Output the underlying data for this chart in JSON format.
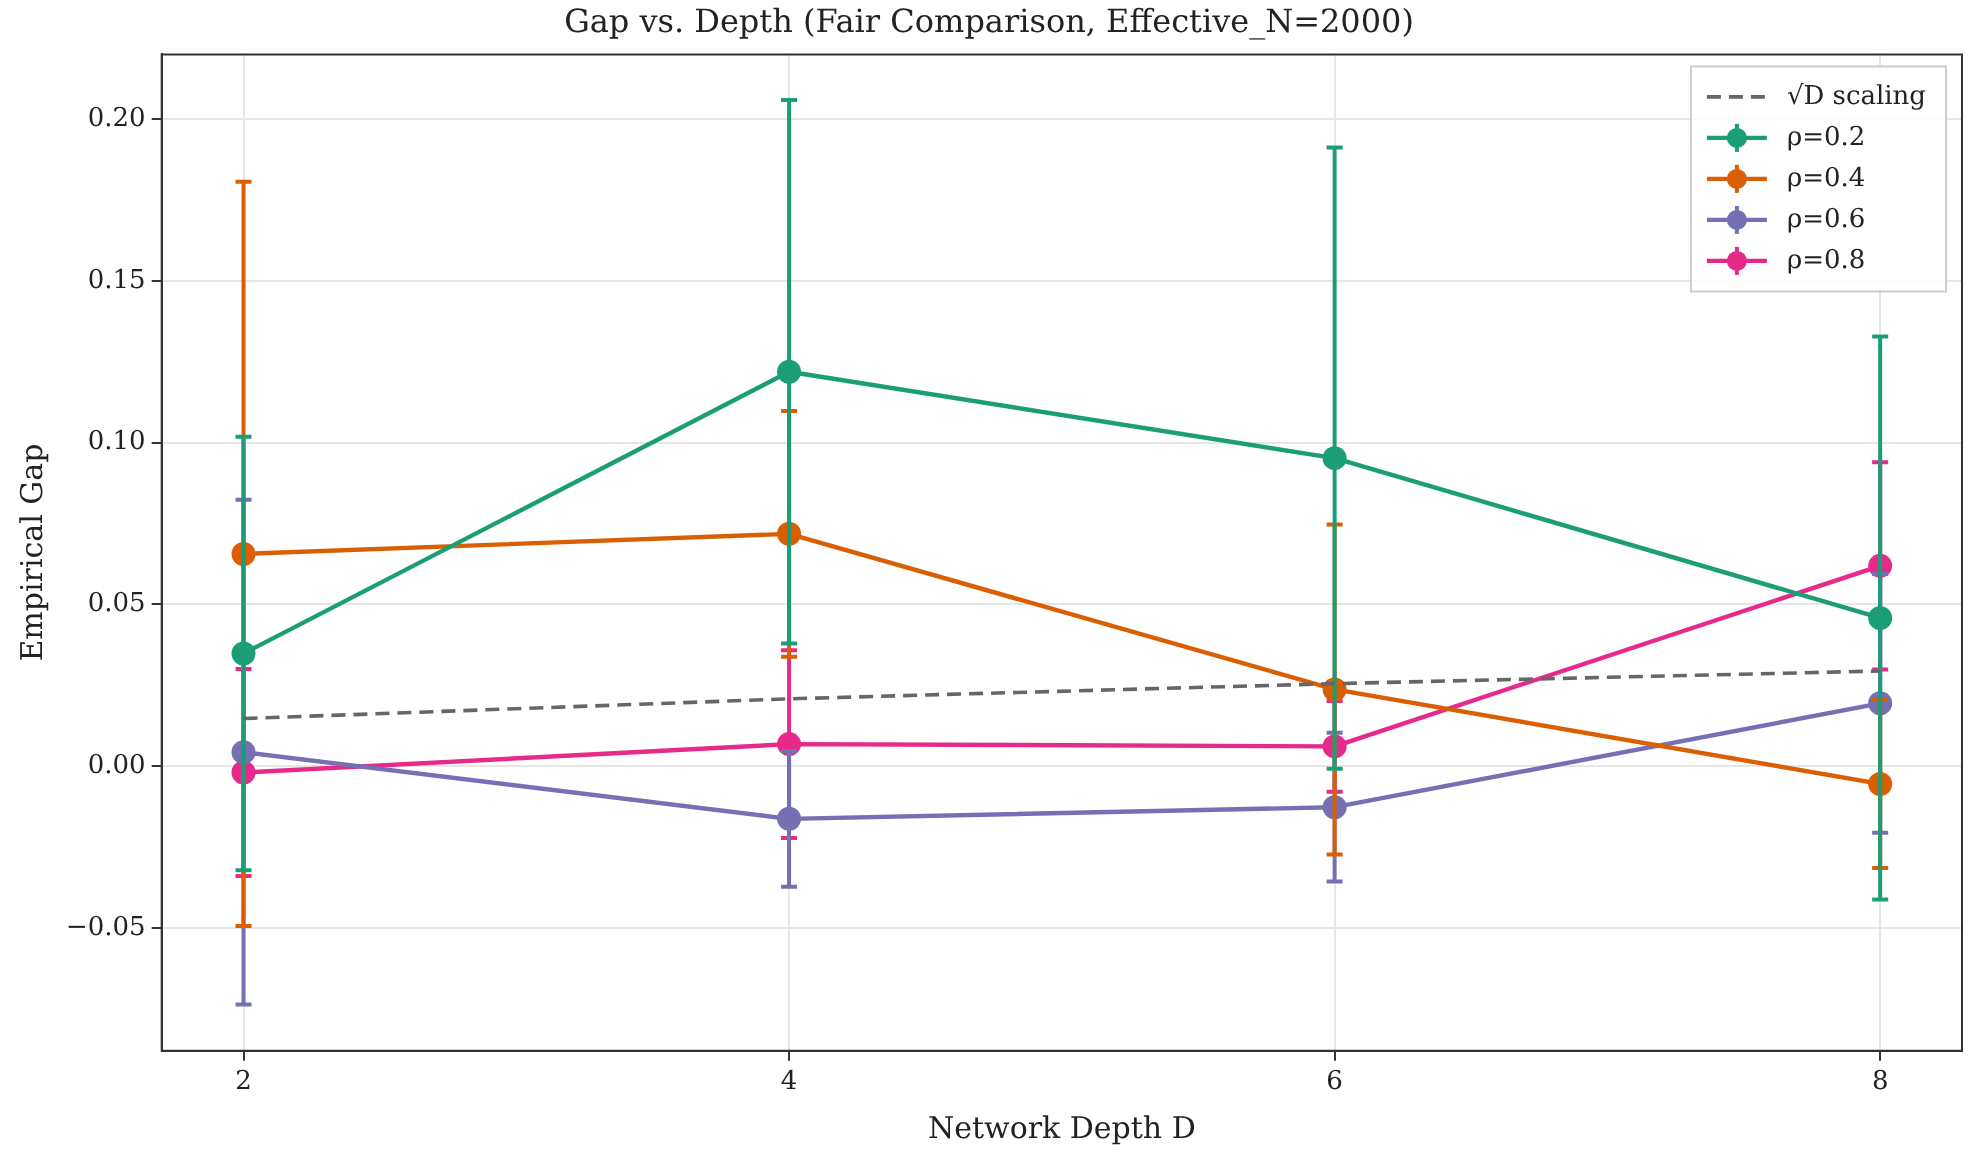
{
  "chart_data": {
    "type": "line",
    "title": "Gap vs. Depth (Fair Comparison, Effective_N=2000)",
    "xlabel": "Network Depth D",
    "ylabel": "Empirical Gap",
    "x": [
      2,
      4,
      6,
      8
    ],
    "xlim": [
      1.7,
      8.3
    ],
    "xticks": [
      2,
      4,
      6,
      8
    ],
    "ylim": [
      -0.088,
      0.22
    ],
    "yticks": [
      {
        "value": -0.05,
        "label": "−0.05"
      },
      {
        "value": 0,
        "label": "0.00"
      },
      {
        "value": 0.05,
        "label": "0.05"
      },
      {
        "value": 0.1,
        "label": "0.10"
      },
      {
        "value": 0.15,
        "label": "0.15"
      },
      {
        "value": 0.2,
        "label": "0.20"
      }
    ],
    "grid": true,
    "legend": "top right",
    "marker": "circle",
    "line_style": "solid",
    "series": [
      {
        "name": "√D scaling",
        "color": "#666666",
        "values": [
          0.0147,
          0.0208,
          0.0255,
          0.0294
        ],
        "line_style": "dashed",
        "marker": "none"
      },
      {
        "name": "ρ=0.2",
        "color": "#1b9e77",
        "values": [
          0.0348,
          0.1219,
          0.0952,
          0.0458
        ],
        "errors": [
          0.067,
          0.084,
          0.096,
          0.087
        ]
      },
      {
        "name": "ρ=0.4",
        "color": "#d95f02",
        "values": [
          0.0656,
          0.0718,
          0.0237,
          -0.0055
        ],
        "errors": [
          0.115,
          0.038,
          0.051,
          0.026
        ]
      },
      {
        "name": "ρ=0.6",
        "color": "#7570b3",
        "values": [
          0.0043,
          -0.0163,
          -0.0127,
          0.0194
        ],
        "errors": [
          0.078,
          0.021,
          0.023,
          0.04
        ]
      },
      {
        "name": "ρ=0.8",
        "color": "#e7298a",
        "values": [
          -0.002,
          0.0068,
          0.0061,
          0.0619
        ],
        "errors": [
          0.032,
          0.029,
          0.014,
          0.032
        ]
      }
    ]
  }
}
